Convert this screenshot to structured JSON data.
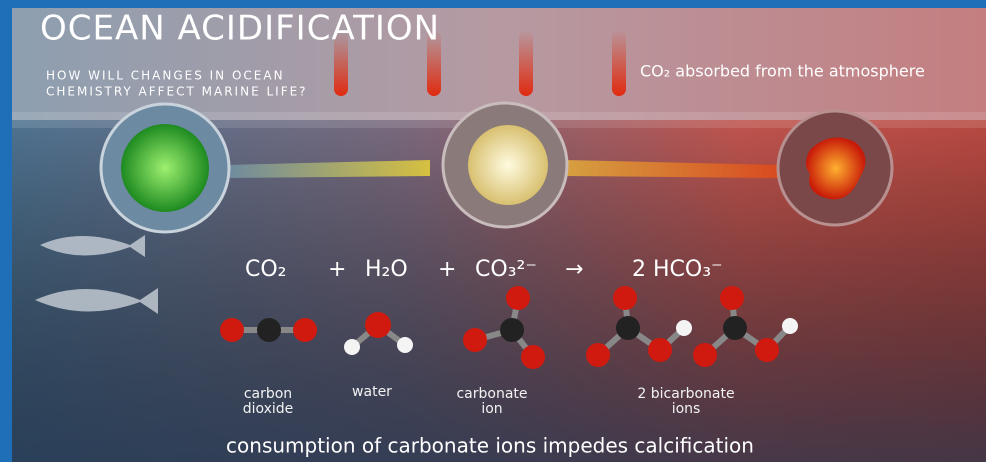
{
  "header": {
    "title": "OCEAN ACIDIFICATION",
    "subtitle": [
      "HOW WILL CHANGES IN OCEAN",
      "CHEMISTRY AFFECT MARINE LIFE?"
    ]
  },
  "annotation": "CO₂ absorbed from the atmosphere",
  "equation": {
    "terms": [
      "CO₂",
      "+",
      "H₂O",
      "+",
      "CO₃²⁻",
      "→",
      "2 HCO₃⁻"
    ]
  },
  "molecules": [
    {
      "label": [
        "carbon",
        "dioxide"
      ]
    },
    {
      "label": [
        "water"
      ]
    },
    {
      "label": [
        "carbonate",
        "ion"
      ]
    },
    {
      "label": [
        "2 bicarbonate",
        "ions"
      ]
    }
  ],
  "caption": "consumption of carbonate ions impedes calcification"
}
